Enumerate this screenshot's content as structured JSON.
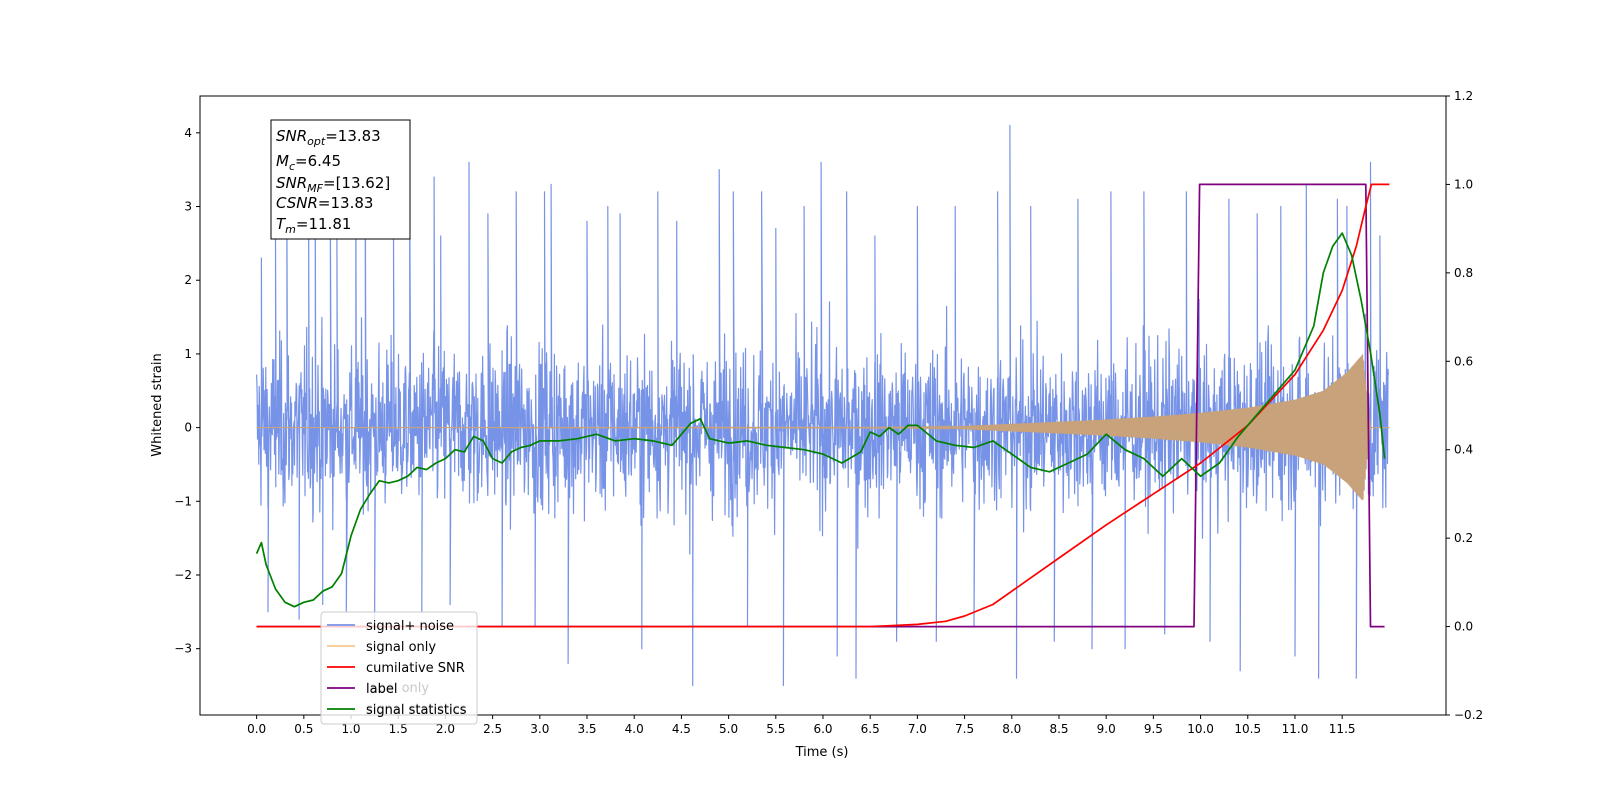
{
  "chart_data": {
    "type": "line",
    "xlabel": "Time (s)",
    "ylabel": "Whitened strain",
    "xlim": [
      -0.6,
      12.6
    ],
    "ylim": [
      -3.9,
      4.5
    ],
    "y2lim": [
      -0.2,
      1.2
    ],
    "x_ticks": [
      "0.0",
      "0.5",
      "1.0",
      "1.5",
      "2.0",
      "2.5",
      "3.0",
      "3.5",
      "4.0",
      "4.5",
      "5.0",
      "5.5",
      "6.0",
      "6.5",
      "7.0",
      "7.5",
      "8.0",
      "8.5",
      "9.0",
      "9.5",
      "10.0",
      "10.5",
      "11.0",
      "11.5"
    ],
    "y_ticks": [
      "4",
      "3",
      "2",
      "1",
      "0",
      "−1",
      "−2",
      "−3"
    ],
    "y2_ticks": [
      "1.2",
      "1.0",
      "0.8",
      "0.6",
      "0.4",
      "0.2",
      "0.0",
      "−0.2"
    ],
    "annotation": {
      "snr_opt": {
        "base": "SNR",
        "sub": "opt",
        "value": "=13.83"
      },
      "mc": {
        "base": "M",
        "sub": "c",
        "value": "=6.45"
      },
      "snr_mf": {
        "base": "SNR",
        "sub": "MF",
        "value": "=[13.62]"
      },
      "csnr": {
        "base": "CSNR",
        "value": "=13.83"
      },
      "tm": {
        "base": "T",
        "sub": "m",
        "value": "=11.81"
      }
    },
    "legend": {
      "placement": "lower-left",
      "entries": [
        {
          "label": "signal+ noise",
          "color": "#7793e8"
        },
        {
          "label": "signal only",
          "color": "#f5c98a"
        },
        {
          "label": "cumilative SNR",
          "color": "#ff0000"
        },
        {
          "label": "label",
          "color": "#800080"
        },
        {
          "label": "signal statistics",
          "color": "#008000"
        }
      ],
      "ghost_labels": [
        "label only",
        "signal statistics"
      ]
    },
    "series": [
      {
        "name": "signal+ noise",
        "axis": "left",
        "color": "#7793e8",
        "x_range": [
          0.0,
          11.99
        ],
        "envelope_y": [
          -1.6,
          1.6
        ],
        "spike_points": [
          [
            0.05,
            2.3
          ],
          [
            0.12,
            -2.5
          ],
          [
            0.2,
            2.6
          ],
          [
            0.32,
            3.3
          ],
          [
            0.45,
            -2.6
          ],
          [
            0.55,
            2.9
          ],
          [
            0.62,
            3.5
          ],
          [
            0.7,
            -2.4
          ],
          [
            0.78,
            3.0
          ],
          [
            0.85,
            2.6
          ],
          [
            0.95,
            -2.5
          ],
          [
            1.05,
            3.4
          ],
          [
            1.15,
            3.7
          ],
          [
            1.25,
            -2.6
          ],
          [
            1.45,
            2.7
          ],
          [
            1.62,
            3.5
          ],
          [
            1.75,
            -2.5
          ],
          [
            1.88,
            3.4
          ],
          [
            1.95,
            2.6
          ],
          [
            2.05,
            -2.4
          ],
          [
            2.25,
            3.6
          ],
          [
            2.45,
            2.9
          ],
          [
            2.6,
            -2.7
          ],
          [
            2.75,
            3.2
          ],
          [
            2.95,
            -2.7
          ],
          [
            3.05,
            3.2
          ],
          [
            3.12,
            3.3
          ],
          [
            3.3,
            -3.2
          ],
          [
            3.5,
            2.8
          ],
          [
            3.72,
            3.0
          ],
          [
            3.85,
            2.9
          ],
          [
            4.08,
            -3.0
          ],
          [
            4.25,
            3.2
          ],
          [
            4.45,
            2.8
          ],
          [
            4.62,
            -3.5
          ],
          [
            4.9,
            3.5
          ],
          [
            5.05,
            3.2
          ],
          [
            5.2,
            -2.7
          ],
          [
            5.35,
            3.2
          ],
          [
            5.5,
            2.7
          ],
          [
            5.58,
            -3.5
          ],
          [
            5.8,
            3.0
          ],
          [
            5.98,
            3.6
          ],
          [
            6.15,
            -3.1
          ],
          [
            6.25,
            3.2
          ],
          [
            6.35,
            -3.4
          ],
          [
            6.55,
            2.6
          ],
          [
            6.78,
            -2.9
          ],
          [
            7.0,
            3.0
          ],
          [
            7.2,
            -2.9
          ],
          [
            7.4,
            3.0
          ],
          [
            7.6,
            -2.7
          ],
          [
            7.85,
            3.2
          ],
          [
            7.98,
            4.1
          ],
          [
            8.05,
            -3.4
          ],
          [
            8.2,
            3.0
          ],
          [
            8.45,
            -2.9
          ],
          [
            8.7,
            3.1
          ],
          [
            8.85,
            -3.0
          ],
          [
            9.05,
            3.2
          ],
          [
            9.2,
            -3.0
          ],
          [
            9.4,
            3.2
          ],
          [
            9.62,
            -2.8
          ],
          [
            9.85,
            3.2
          ],
          [
            10.1,
            -2.9
          ],
          [
            10.3,
            3.1
          ],
          [
            10.42,
            -3.3
          ],
          [
            10.6,
            2.9
          ],
          [
            10.85,
            3.0
          ],
          [
            11.0,
            -3.1
          ],
          [
            11.12,
            3.3
          ],
          [
            11.25,
            -3.4
          ],
          [
            11.45,
            3.1
          ],
          [
            11.55,
            3.0
          ],
          [
            11.65,
            -3.4
          ],
          [
            11.8,
            3.6
          ],
          [
            11.9,
            2.6
          ]
        ]
      },
      {
        "name": "signal only",
        "axis": "left",
        "color": "#f5c98a",
        "x_range": [
          0.0,
          12.0
        ],
        "amplitude_profile": [
          [
            0.0,
            0.0
          ],
          [
            6.9,
            0.005
          ],
          [
            7.3,
            0.01
          ],
          [
            7.8,
            0.04
          ],
          [
            8.5,
            0.08
          ],
          [
            9.0,
            0.11
          ],
          [
            9.5,
            0.15
          ],
          [
            10.0,
            0.2
          ],
          [
            10.5,
            0.27
          ],
          [
            11.0,
            0.38
          ],
          [
            11.3,
            0.5
          ],
          [
            11.55,
            0.75
          ],
          [
            11.72,
            1.0
          ],
          [
            11.8,
            0.0
          ],
          [
            12.0,
            0.0
          ]
        ]
      },
      {
        "name": "cumilative SNR",
        "axis": "right",
        "color": "#ff0000",
        "x": [
          0.0,
          6.5,
          7.0,
          7.3,
          7.5,
          7.8,
          8.0,
          8.5,
          9.0,
          9.5,
          10.0,
          10.5,
          11.0,
          11.3,
          11.5,
          11.65,
          11.75,
          11.81,
          12.0
        ],
        "y": [
          0.0,
          0.0,
          0.005,
          0.012,
          0.024,
          0.05,
          0.08,
          0.155,
          0.23,
          0.3,
          0.37,
          0.455,
          0.57,
          0.67,
          0.76,
          0.86,
          0.95,
          1.0,
          1.0
        ]
      },
      {
        "name": "label",
        "axis": "right",
        "color": "#800080",
        "x": [
          0.0,
          9.93,
          9.99,
          11.75,
          11.8,
          11.81,
          11.95
        ],
        "y": [
          0.0,
          0.0,
          1.0,
          1.0,
          0.0,
          0.0,
          0.0
        ]
      },
      {
        "name": "signal statistics",
        "axis": "right",
        "color": "#008000",
        "x": [
          0.0,
          0.05,
          0.1,
          0.2,
          0.3,
          0.4,
          0.5,
          0.6,
          0.7,
          0.8,
          0.9,
          1.0,
          1.1,
          1.2,
          1.3,
          1.4,
          1.5,
          1.6,
          1.7,
          1.8,
          1.9,
          2.0,
          2.1,
          2.2,
          2.3,
          2.4,
          2.5,
          2.6,
          2.7,
          2.8,
          2.9,
          3.0,
          3.2,
          3.4,
          3.6,
          3.8,
          4.0,
          4.2,
          4.4,
          4.6,
          4.7,
          4.8,
          5.0,
          5.2,
          5.4,
          5.6,
          5.8,
          6.0,
          6.2,
          6.4,
          6.5,
          6.6,
          6.7,
          6.8,
          6.9,
          7.0,
          7.2,
          7.4,
          7.6,
          7.8,
          8.0,
          8.2,
          8.4,
          8.6,
          8.8,
          9.0,
          9.2,
          9.4,
          9.6,
          9.8,
          10.0,
          10.2,
          10.4,
          10.6,
          10.8,
          11.0,
          11.2,
          11.3,
          11.4,
          11.5,
          11.6,
          11.7,
          11.8,
          11.9,
          11.95
        ],
        "y": [
          0.165,
          0.19,
          0.14,
          0.085,
          0.055,
          0.045,
          0.055,
          0.06,
          0.08,
          0.09,
          0.12,
          0.205,
          0.265,
          0.3,
          0.33,
          0.325,
          0.33,
          0.34,
          0.36,
          0.355,
          0.37,
          0.38,
          0.4,
          0.395,
          0.43,
          0.42,
          0.38,
          0.37,
          0.395,
          0.405,
          0.41,
          0.42,
          0.42,
          0.425,
          0.435,
          0.42,
          0.425,
          0.42,
          0.41,
          0.46,
          0.47,
          0.425,
          0.415,
          0.42,
          0.41,
          0.405,
          0.4,
          0.39,
          0.37,
          0.395,
          0.44,
          0.43,
          0.45,
          0.435,
          0.455,
          0.455,
          0.42,
          0.41,
          0.405,
          0.42,
          0.39,
          0.36,
          0.35,
          0.37,
          0.39,
          0.435,
          0.4,
          0.38,
          0.34,
          0.38,
          0.34,
          0.37,
          0.43,
          0.48,
          0.53,
          0.58,
          0.68,
          0.8,
          0.86,
          0.89,
          0.84,
          0.74,
          0.62,
          0.48,
          0.38
        ]
      }
    ]
  }
}
